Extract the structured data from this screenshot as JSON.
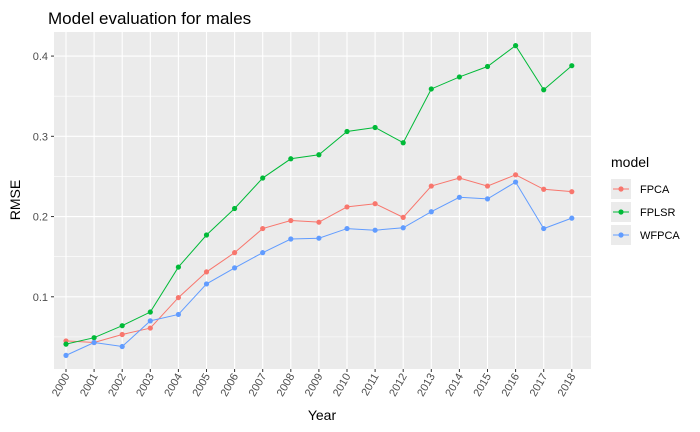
{
  "chart_data": {
    "type": "line",
    "title": "Model evaluation for males",
    "xlabel": "Year",
    "ylabel": "RMSE",
    "x": [
      "2000",
      "2001",
      "2002",
      "2003",
      "2004",
      "2005",
      "2006",
      "2007",
      "2008",
      "2009",
      "2010",
      "2011",
      "2012",
      "2013",
      "2014",
      "2015",
      "2016",
      "2017",
      "2018"
    ],
    "yticks": [
      0.1,
      0.2,
      0.3,
      0.4
    ],
    "ytick_labels": [
      "0.1",
      "0.2",
      "0.3",
      "0.4"
    ],
    "ylim": [
      0.01,
      0.43
    ],
    "grid": true,
    "x_tick_rotation": "vertical",
    "legend": {
      "title": "model",
      "position": "right"
    },
    "series": [
      {
        "name": "FPCA",
        "color": "#F8766D",
        "values": [
          0.045,
          0.043,
          0.053,
          0.061,
          0.099,
          0.131,
          0.155,
          0.185,
          0.195,
          0.193,
          0.212,
          0.216,
          0.199,
          0.238,
          0.248,
          0.238,
          0.252,
          0.234,
          0.231
        ]
      },
      {
        "name": "FPLSR",
        "color": "#00BA38",
        "values": [
          0.041,
          0.049,
          0.064,
          0.081,
          0.137,
          0.177,
          0.21,
          0.248,
          0.272,
          0.277,
          0.306,
          0.311,
          0.292,
          0.359,
          0.374,
          0.387,
          0.413,
          0.358,
          0.388
        ]
      },
      {
        "name": "WFPCA",
        "color": "#619CFF",
        "values": [
          0.027,
          0.043,
          0.038,
          0.07,
          0.078,
          0.116,
          0.136,
          0.155,
          0.172,
          0.173,
          0.185,
          0.183,
          0.186,
          0.206,
          0.224,
          0.222,
          0.243,
          0.185,
          0.198
        ]
      }
    ]
  }
}
